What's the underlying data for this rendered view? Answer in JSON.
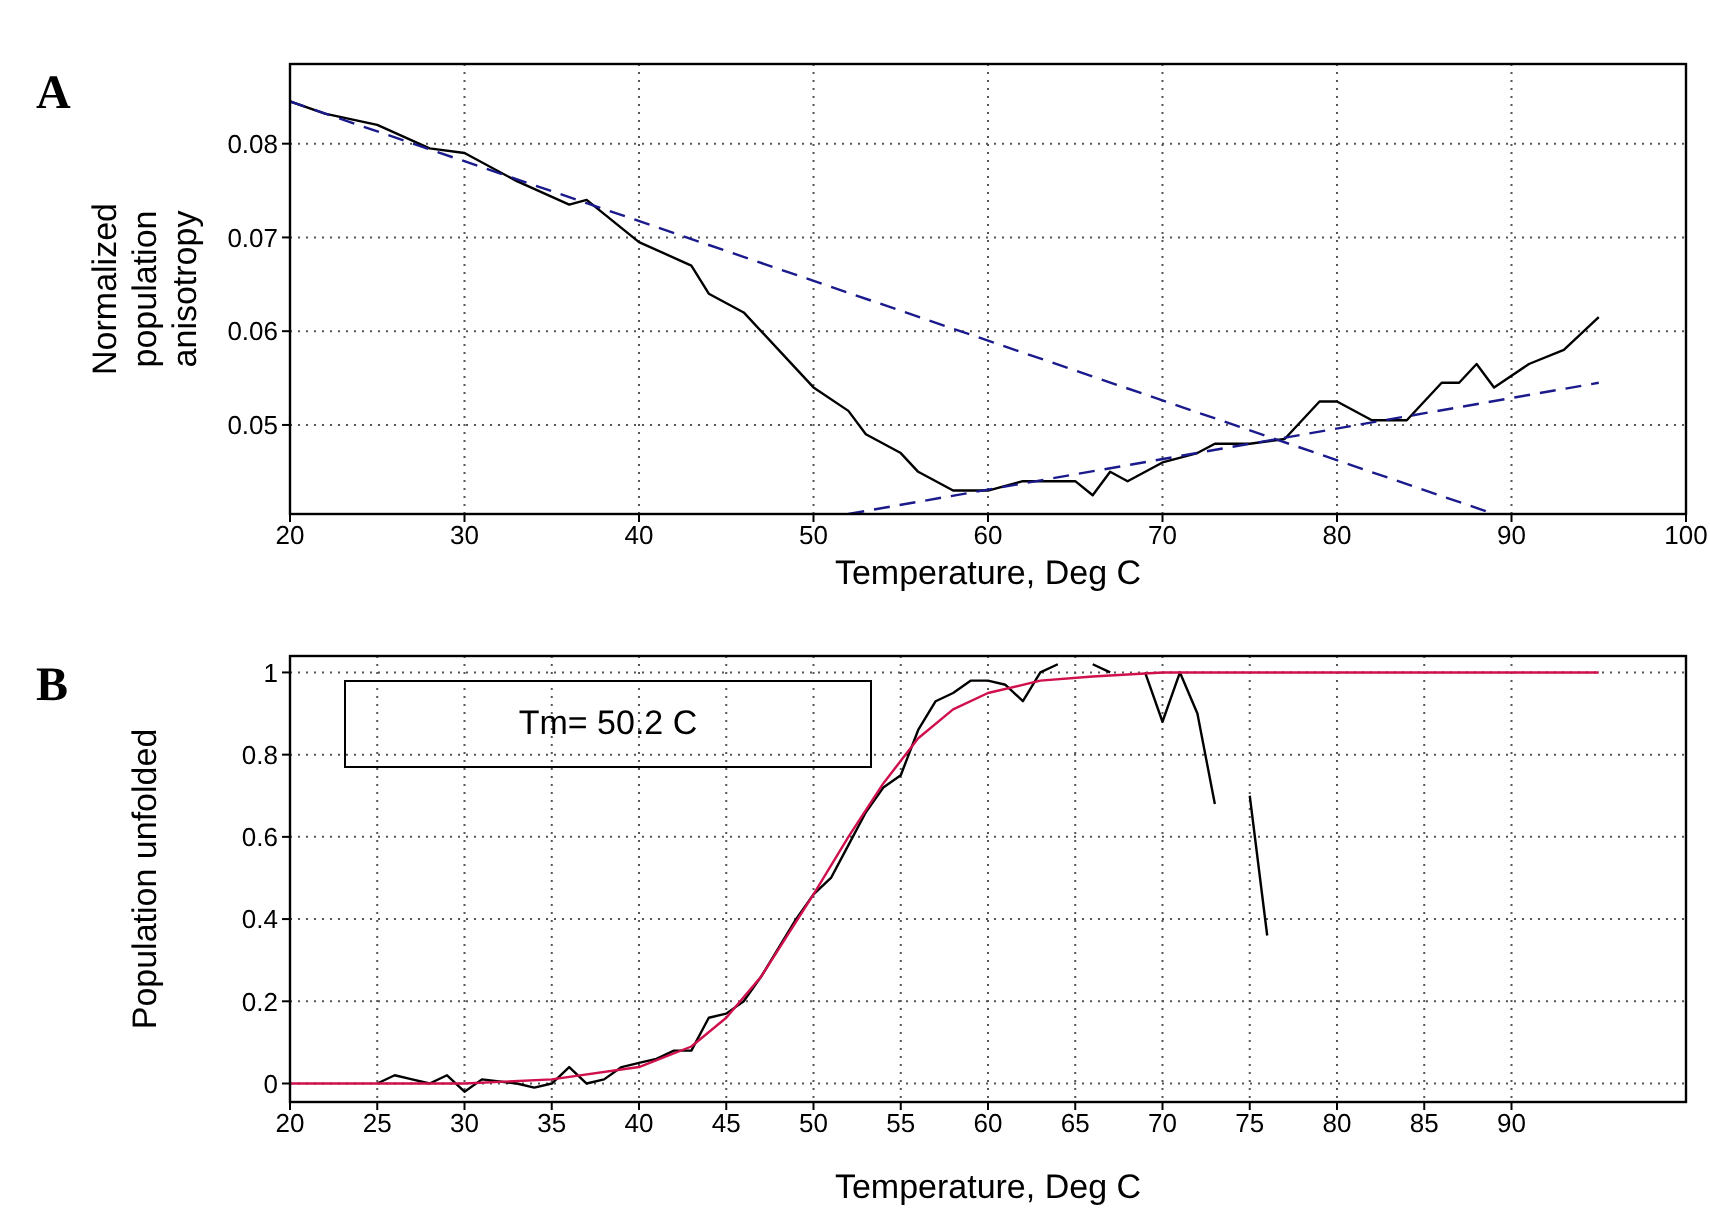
{
  "chart_data": [
    {
      "type": "line",
      "title": "A",
      "xlabel": "Temperature, Deg C",
      "ylabel": "Normalized population anisotropy",
      "xlim": [
        20,
        100
      ],
      "ylim": [
        0.0405,
        0.0885
      ],
      "xticks": [
        20,
        30,
        40,
        50,
        60,
        70,
        80,
        90,
        100
      ],
      "yticks": [
        0.05,
        0.06,
        0.07,
        0.08
      ],
      "grid": true,
      "marker": "none",
      "series": [
        {
          "color": "#000000",
          "line_style": "solid",
          "x": [
            20,
            22,
            25,
            28,
            30,
            33,
            36,
            37,
            40,
            43,
            44,
            46,
            48,
            50,
            52,
            53,
            55,
            56,
            58,
            60,
            62,
            65,
            66,
            67,
            68,
            70,
            72,
            73,
            75,
            77,
            79,
            80,
            82,
            84,
            86,
            87,
            88,
            89,
            91,
            93,
            95
          ],
          "values": [
            0.0845,
            0.0832,
            0.082,
            0.0795,
            0.079,
            0.076,
            0.0735,
            0.074,
            0.0695,
            0.067,
            0.064,
            0.062,
            0.058,
            0.054,
            0.0515,
            0.049,
            0.047,
            0.045,
            0.043,
            0.043,
            0.044,
            0.044,
            0.0425,
            0.045,
            0.044,
            0.046,
            0.047,
            0.048,
            0.048,
            0.0485,
            0.0525,
            0.0525,
            0.0505,
            0.0505,
            0.0545,
            0.0545,
            0.0565,
            0.054,
            0.0565,
            0.058,
            0.0615
          ]
        },
        {
          "color": "#1a1a8c",
          "line_style": "dashed",
          "x": [
            20,
            89
          ],
          "values": [
            0.0845,
            0.0405
          ]
        },
        {
          "color": "#1a1a8c",
          "line_style": "dashed",
          "x": [
            52,
            95
          ],
          "values": [
            0.0405,
            0.0545
          ]
        }
      ]
    },
    {
      "type": "line",
      "title": "B",
      "xlabel": "Temperature, Deg C",
      "ylabel": "Population unfolded",
      "xlim": [
        20,
        100
      ],
      "ylim": [
        -0.045,
        1.04
      ],
      "xticks": [
        20,
        25,
        30,
        35,
        40,
        45,
        50,
        55,
        60,
        65,
        70,
        75,
        80,
        85,
        90
      ],
      "yticks": [
        0,
        0.2,
        0.4,
        0.6,
        0.8,
        1
      ],
      "grid": true,
      "marker": "none",
      "annotations": [
        "Tm= 50.2 C"
      ],
      "series": [
        {
          "color": "#000000",
          "line_style": "solid",
          "x": [
            25,
            26,
            27,
            28,
            29,
            30,
            31,
            33,
            34,
            35,
            36,
            37,
            38,
            39,
            40,
            41,
            42,
            43,
            44,
            45,
            46,
            47,
            48,
            49,
            50,
            51,
            52,
            53,
            54,
            55,
            56,
            57,
            58,
            59,
            60,
            61,
            62,
            63,
            64,
            65,
            66,
            67,
            68,
            69,
            70,
            71,
            72,
            73,
            74,
            74.5,
            75,
            76
          ],
          "values": [
            0,
            0.02,
            0.01,
            0,
            0.02,
            -0.02,
            0.01,
            0,
            -0.01,
            0,
            0.04,
            0,
            0.01,
            0.04,
            0.05,
            0.06,
            0.08,
            0.08,
            0.16,
            0.17,
            0.2,
            0.26,
            0.33,
            0.4,
            0.46,
            0.5,
            0.58,
            0.66,
            0.72,
            0.75,
            0.86,
            0.93,
            0.95,
            0.98,
            0.98,
            0.97,
            0.93,
            1,
            1.02,
            null,
            1.02,
            1,
            null,
            1,
            0.88,
            1,
            0.9,
            0.68,
            null,
            null,
            0.7,
            0.36
          ]
        },
        {
          "color": "#d0104c",
          "line_style": "solid",
          "x": [
            20,
            30,
            35,
            40,
            43,
            45,
            47,
            50,
            52,
            54,
            56,
            58,
            60,
            63,
            66,
            70,
            80,
            95
          ],
          "values": [
            0,
            0,
            0.01,
            0.04,
            0.09,
            0.16,
            0.26,
            0.46,
            0.6,
            0.73,
            0.84,
            0.91,
            0.95,
            0.98,
            0.99,
            1,
            1,
            1
          ]
        }
      ]
    }
  ]
}
